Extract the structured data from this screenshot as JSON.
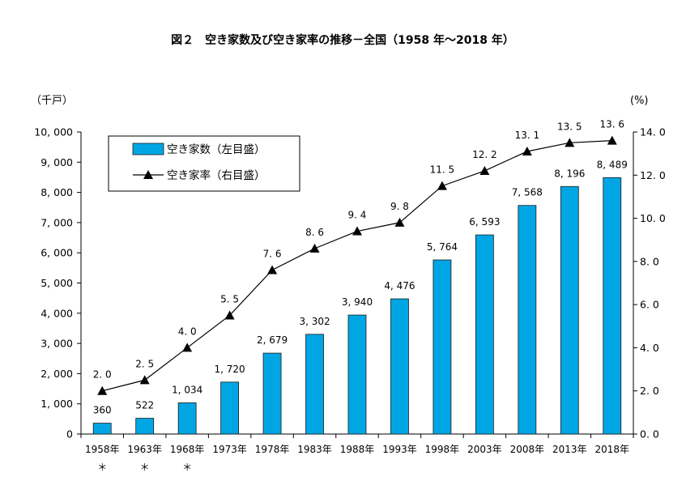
{
  "chart_data": {
    "type": "bar",
    "title": "図２　空き家数及び空き家率の推移－全国（1958 年～2018 年）",
    "categories": [
      "1958年",
      "1963年",
      "1968年",
      "1973年",
      "1978年",
      "1983年",
      "1988年",
      "1993年",
      "1998年",
      "2003年",
      "2008年",
      "2013年",
      "2018年"
    ],
    "category_marks": [
      "＊",
      "＊",
      "＊",
      "",
      "",
      "",
      "",
      "",
      "",
      "",
      "",
      "",
      ""
    ],
    "left_axis": {
      "unit_label": "（千戸）",
      "min": 0,
      "max": 10000,
      "ticks": [
        0,
        1000,
        2000,
        3000,
        4000,
        5000,
        6000,
        7000,
        8000,
        9000,
        10000
      ],
      "tick_labels": [
        "0",
        "1, 000",
        "2, 000",
        "3, 000",
        "4, 000",
        "5, 000",
        "6, 000",
        "7, 000",
        "8, 000",
        "9, 000",
        "10, 000"
      ]
    },
    "right_axis": {
      "unit_label": "(%)",
      "min": 0,
      "max": 14,
      "ticks": [
        0,
        2,
        4,
        6,
        8,
        10,
        12,
        14
      ],
      "tick_labels": [
        "0. 0",
        "2. 0",
        "4. 0",
        "6. 0",
        "8. 0",
        "10. 0",
        "12. 0",
        "14. 0"
      ]
    },
    "series": [
      {
        "name": "空き家数（左目盛）",
        "type": "bar",
        "axis": "left",
        "color": "#00a6e4",
        "values": [
          360,
          522,
          1034,
          1720,
          2679,
          3302,
          3940,
          4476,
          5764,
          6593,
          7568,
          8196,
          8489
        ],
        "labels": [
          "360",
          "522",
          "1, 034",
          "1, 720",
          "2, 679",
          "3, 302",
          "3, 940",
          "4, 476",
          "5, 764",
          "6, 593",
          "7, 568",
          "8, 196",
          "8, 489"
        ]
      },
      {
        "name": "空き家率（右目盛）",
        "type": "line",
        "axis": "right",
        "color": "#000000",
        "marker": "triangle",
        "values": [
          2.0,
          2.5,
          4.0,
          5.5,
          7.6,
          8.6,
          9.4,
          9.8,
          11.5,
          12.2,
          13.1,
          13.5,
          13.6
        ],
        "labels": [
          "2. 0",
          "2. 5",
          "4. 0",
          "5. 5",
          "7. 6",
          "8. 6",
          "9. 4",
          "9. 8",
          "11. 5",
          "12. 2",
          "13. 1",
          "13. 5",
          "13. 6"
        ]
      }
    ],
    "legend_position": "top-left",
    "grid": false
  }
}
